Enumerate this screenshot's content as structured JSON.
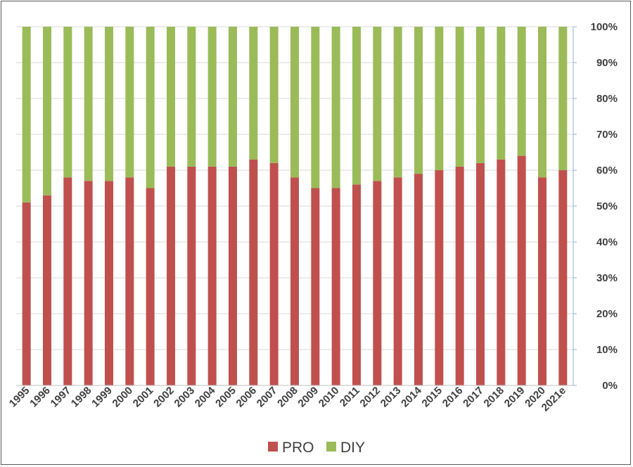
{
  "chart_data": {
    "type": "bar",
    "stacked": true,
    "categories": [
      "1995",
      "1996",
      "1997",
      "1998",
      "1999",
      "2000",
      "2001",
      "2002",
      "2003",
      "2004",
      "2005",
      "2006",
      "2007",
      "2008",
      "2009",
      "2010",
      "2011",
      "2012",
      "2013",
      "2014",
      "2015",
      "2016",
      "2017",
      "2018",
      "2019",
      "2020",
      "2021e"
    ],
    "series": [
      {
        "name": "PRO",
        "color": "#c0504d",
        "values": [
          51,
          53,
          58,
          57,
          57,
          58,
          55,
          61,
          61,
          61,
          61,
          63,
          62,
          58,
          55,
          55,
          56,
          57,
          58,
          59,
          60,
          61,
          62,
          63,
          64,
          58,
          60
        ]
      },
      {
        "name": "DIY",
        "color": "#9bbb59",
        "values": [
          49,
          47,
          42,
          43,
          43,
          42,
          45,
          39,
          39,
          39,
          39,
          37,
          38,
          42,
          45,
          45,
          44,
          43,
          42,
          41,
          40,
          39,
          38,
          37,
          36,
          42,
          40
        ]
      }
    ],
    "ylim": [
      0,
      100
    ],
    "y_axis_position": "right",
    "y_ticks": [
      "0%",
      "10%",
      "20%",
      "30%",
      "40%",
      "50%",
      "60%",
      "70%",
      "80%",
      "90%",
      "100%"
    ],
    "grid": true,
    "legend_position": "bottom"
  }
}
